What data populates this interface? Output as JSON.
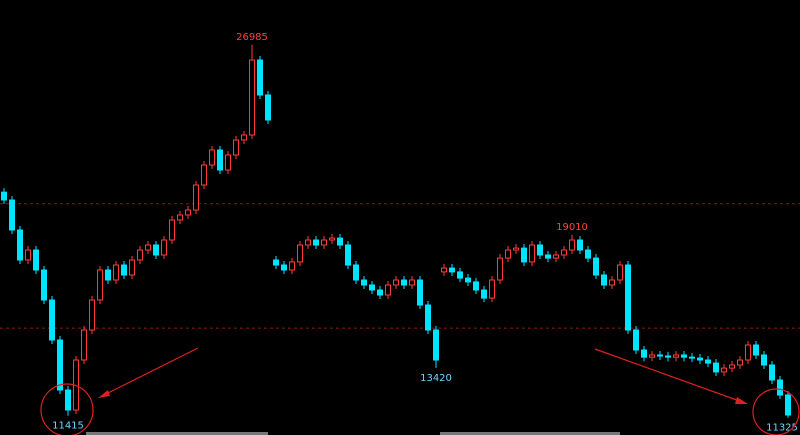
{
  "chart_data": {
    "type": "candlestick",
    "ylim": [
      10600,
      28870
    ],
    "up_color": "#ff3b3b",
    "down_color": "#00e5ff",
    "candles": {
      "open": [
        20800,
        20470,
        19210,
        17950,
        18370,
        17530,
        16270,
        14590,
        12490,
        11650,
        13750,
        15010,
        16270,
        17530,
        17110,
        17740,
        17320,
        17950,
        18370,
        18580,
        18160,
        18790,
        19630,
        19840,
        20050,
        21100,
        21940,
        22570,
        21730,
        22360,
        22990,
        23200,
        26350,
        24880,
        17950,
        17740,
        17530,
        17870,
        18580,
        18790,
        18580,
        18790,
        18870,
        18580,
        17740,
        17110,
        16900,
        16690,
        16480,
        16900,
        17110,
        16900,
        17110,
        16060,
        15010,
        17450,
        17610,
        17450,
        17190,
        17030,
        16690,
        16350,
        17110,
        18030,
        18370,
        18450,
        17870,
        18580,
        18160,
        18030,
        18160,
        18370,
        18790,
        18370,
        18030,
        17320,
        16900,
        17110,
        17740,
        15010,
        14170,
        13870,
        13960,
        13920,
        13870,
        13960,
        13870,
        13830,
        13750,
        13620,
        13250,
        13410,
        13540,
        13750,
        14380,
        13960,
        13540,
        12910,
        12280
      ],
      "close": [
        20470,
        19210,
        17950,
        18370,
        17530,
        16270,
        14590,
        12490,
        11650,
        13750,
        15010,
        16270,
        17530,
        17110,
        17740,
        17320,
        17950,
        18370,
        18580,
        18160,
        18790,
        19630,
        19840,
        20050,
        21100,
        21940,
        22570,
        21730,
        22360,
        22990,
        23200,
        26350,
        24880,
        23830,
        17740,
        17530,
        17870,
        18580,
        18790,
        18580,
        18790,
        18870,
        18580,
        17740,
        17110,
        16900,
        16690,
        16480,
        16900,
        17110,
        16900,
        17110,
        16060,
        15010,
        13750,
        17610,
        17450,
        17190,
        17030,
        16690,
        16350,
        17110,
        18030,
        18370,
        18450,
        17870,
        18580,
        18160,
        18030,
        18160,
        18370,
        18790,
        18370,
        18030,
        17320,
        16900,
        17110,
        17740,
        15010,
        14170,
        13870,
        13960,
        13920,
        13870,
        13960,
        13870,
        13830,
        13750,
        13620,
        13250,
        13410,
        13540,
        13750,
        14380,
        13960,
        13540,
        12910,
        12280,
        11440
      ],
      "high": [
        20970,
        20640,
        19380,
        18540,
        18540,
        17700,
        16440,
        14760,
        12660,
        13920,
        15180,
        16440,
        17700,
        17700,
        17910,
        17910,
        18120,
        18540,
        18750,
        18750,
        18960,
        19800,
        20010,
        20220,
        21270,
        22110,
        22740,
        22740,
        22530,
        23160,
        23370,
        26985,
        26520,
        25050,
        18120,
        17910,
        18040,
        18750,
        18960,
        18960,
        18960,
        19040,
        19040,
        18750,
        17910,
        17280,
        17070,
        16860,
        17070,
        17280,
        17280,
        17280,
        17280,
        16230,
        15180,
        17780,
        17780,
        17620,
        17360,
        17200,
        16860,
        17280,
        18200,
        18540,
        18620,
        18620,
        18750,
        18750,
        18330,
        18330,
        18540,
        19010,
        18960,
        18540,
        18200,
        17490,
        17280,
        17910,
        17910,
        15180,
        14340,
        14130,
        14130,
        14090,
        14130,
        14130,
        14040,
        14000,
        13920,
        13790,
        13580,
        13710,
        13920,
        14550,
        14550,
        14130,
        13710,
        13080,
        12450
      ],
      "low": [
        20300,
        19040,
        17780,
        17780,
        17360,
        16100,
        14420,
        12320,
        11415,
        11480,
        13580,
        14840,
        16100,
        16940,
        16940,
        17150,
        17150,
        17780,
        18200,
        17990,
        17990,
        18620,
        19460,
        19670,
        19880,
        20930,
        21770,
        21560,
        21560,
        22190,
        22820,
        23030,
        24710,
        23660,
        17570,
        17360,
        17360,
        17700,
        18410,
        18410,
        18410,
        18620,
        18410,
        17570,
        16940,
        16730,
        16520,
        16310,
        16310,
        16730,
        16730,
        16730,
        15890,
        14840,
        13420,
        17280,
        17280,
        17020,
        16860,
        16520,
        16180,
        16180,
        16940,
        17860,
        18200,
        17700,
        17700,
        17990,
        17860,
        17860,
        17990,
        18200,
        18200,
        17860,
        17150,
        16730,
        16730,
        16940,
        14840,
        14000,
        13700,
        13700,
        13750,
        13700,
        13700,
        13700,
        13660,
        13580,
        13450,
        13080,
        13080,
        13240,
        13370,
        13580,
        13790,
        13370,
        12740,
        12110,
        11325
      ]
    },
    "reference_lines": [
      20310,
      15090
    ],
    "reference_color": "#8b1a1a",
    "annotations": [
      {
        "index": 31,
        "value": 26985,
        "at": "high",
        "color": "#ff4040"
      },
      {
        "index": 8,
        "value": 11415,
        "at": "low",
        "color": "#6fd3ff"
      },
      {
        "index": 54,
        "value": 13420,
        "at": "low",
        "color": "#6fd3ff"
      },
      {
        "index": 71,
        "value": 19010,
        "at": "high",
        "color": "#ff4040"
      },
      {
        "index": 98,
        "value": 11325,
        "at": "low",
        "color": "#6fd3ff"
      }
    ]
  }
}
